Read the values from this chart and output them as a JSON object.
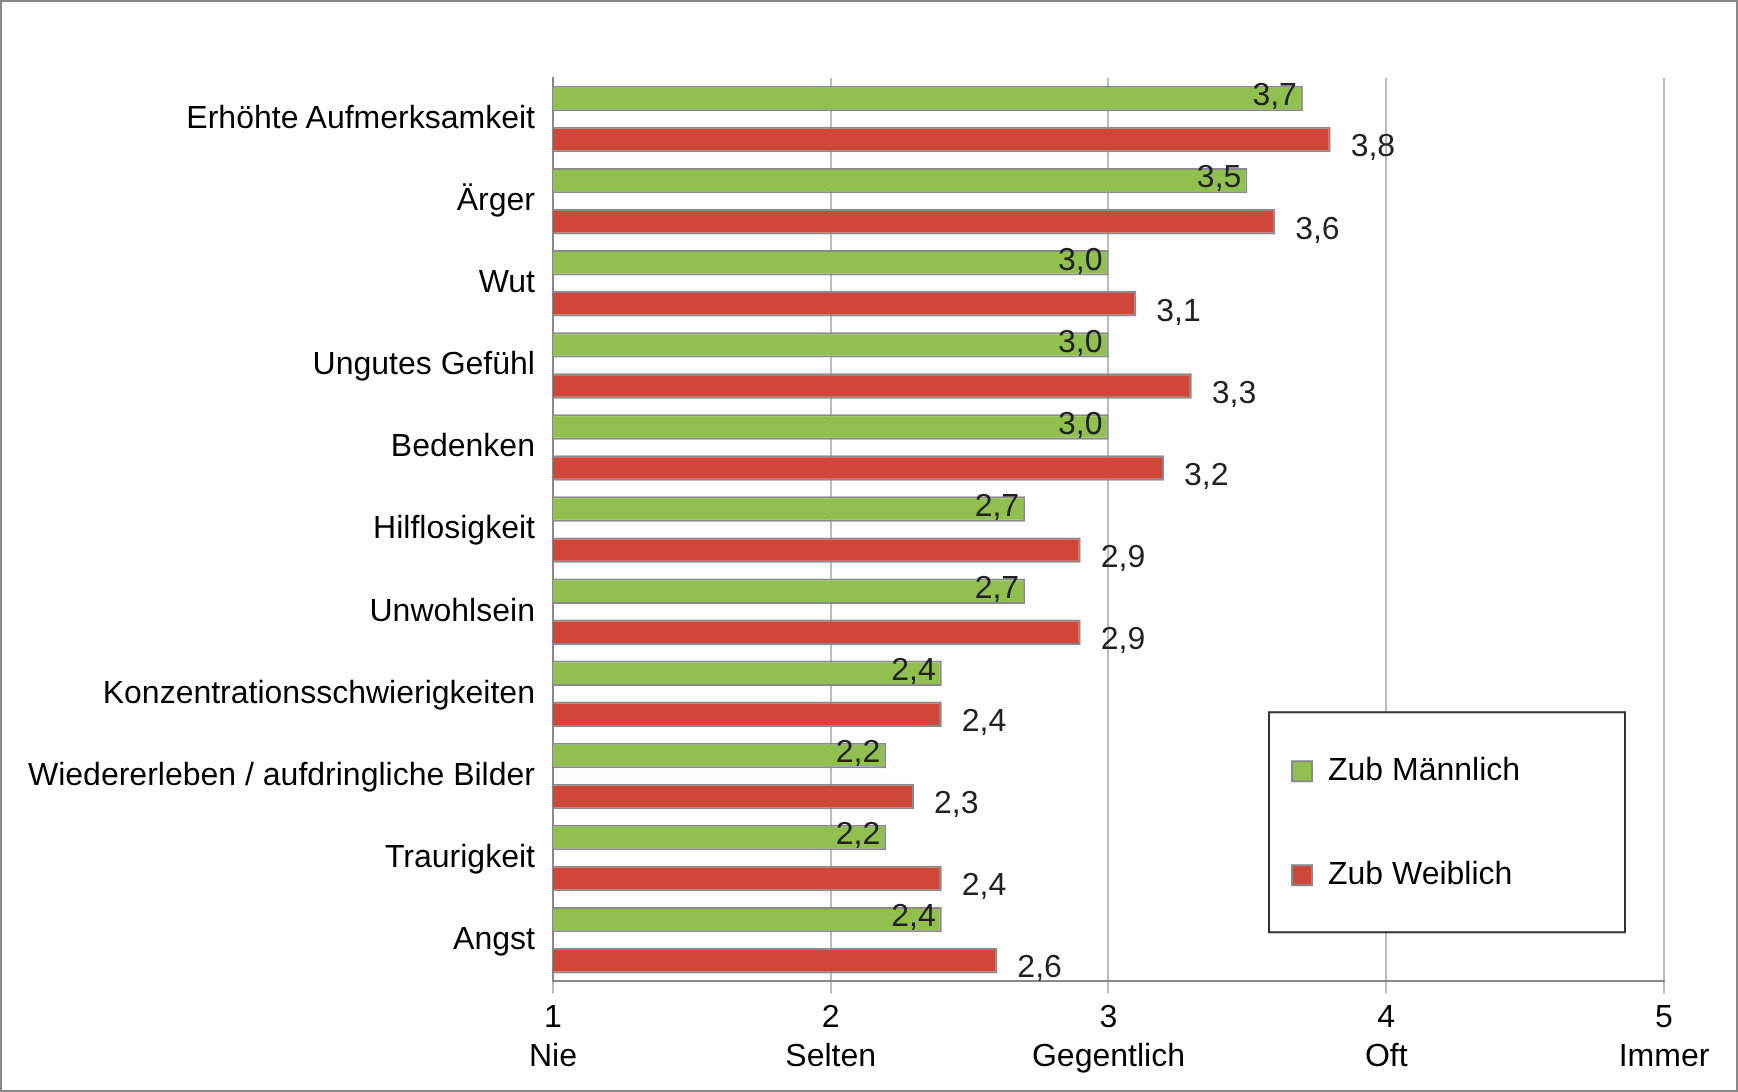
{
  "chart_data": {
    "type": "bar",
    "orientation": "horizontal",
    "categories": [
      "Erhöhte Aufmerksamkeit",
      "Ärger",
      "Wut",
      "Ungutes Gefühl",
      "Bedenken",
      "Hilflosigkeit",
      "Unwohlsein",
      "Konzentrationsschwierigkeiten",
      "Wiedererleben / aufdringliche Bilder",
      "Traurigkeit",
      "Angst"
    ],
    "series": [
      {
        "name": "Zub Männlich",
        "color": "#92c050",
        "values": [
          3.7,
          3.5,
          3.0,
          3.0,
          3.0,
          2.7,
          2.7,
          2.4,
          2.2,
          2.2,
          2.4
        ],
        "value_labels": [
          "3,7",
          "3,5",
          "3,0",
          "3,0",
          "3,0",
          "2,7",
          "2,7",
          "2,4",
          "2,2",
          "2,2",
          "2,4"
        ]
      },
      {
        "name": "Zub Weiblich",
        "color": "#d0473a",
        "values": [
          3.8,
          3.6,
          3.1,
          3.3,
          3.2,
          2.9,
          2.9,
          2.4,
          2.3,
          2.4,
          2.6
        ],
        "value_labels": [
          "3,8",
          "3,6",
          "3,1",
          "3,3",
          "3,2",
          "2,9",
          "2,9",
          "2,4",
          "2,3",
          "2,4",
          "2,6"
        ]
      }
    ],
    "xlim": [
      1,
      5
    ],
    "xticks": [
      {
        "value": 1,
        "label": "1\nNie"
      },
      {
        "value": 2,
        "label": "2\nSelten"
      },
      {
        "value": 3,
        "label": "3\nGegentlich"
      },
      {
        "value": 4,
        "label": "4\nOft"
      },
      {
        "value": 5,
        "label": "5\nImmer"
      }
    ],
    "grid": "x",
    "legend": "bottom right"
  }
}
